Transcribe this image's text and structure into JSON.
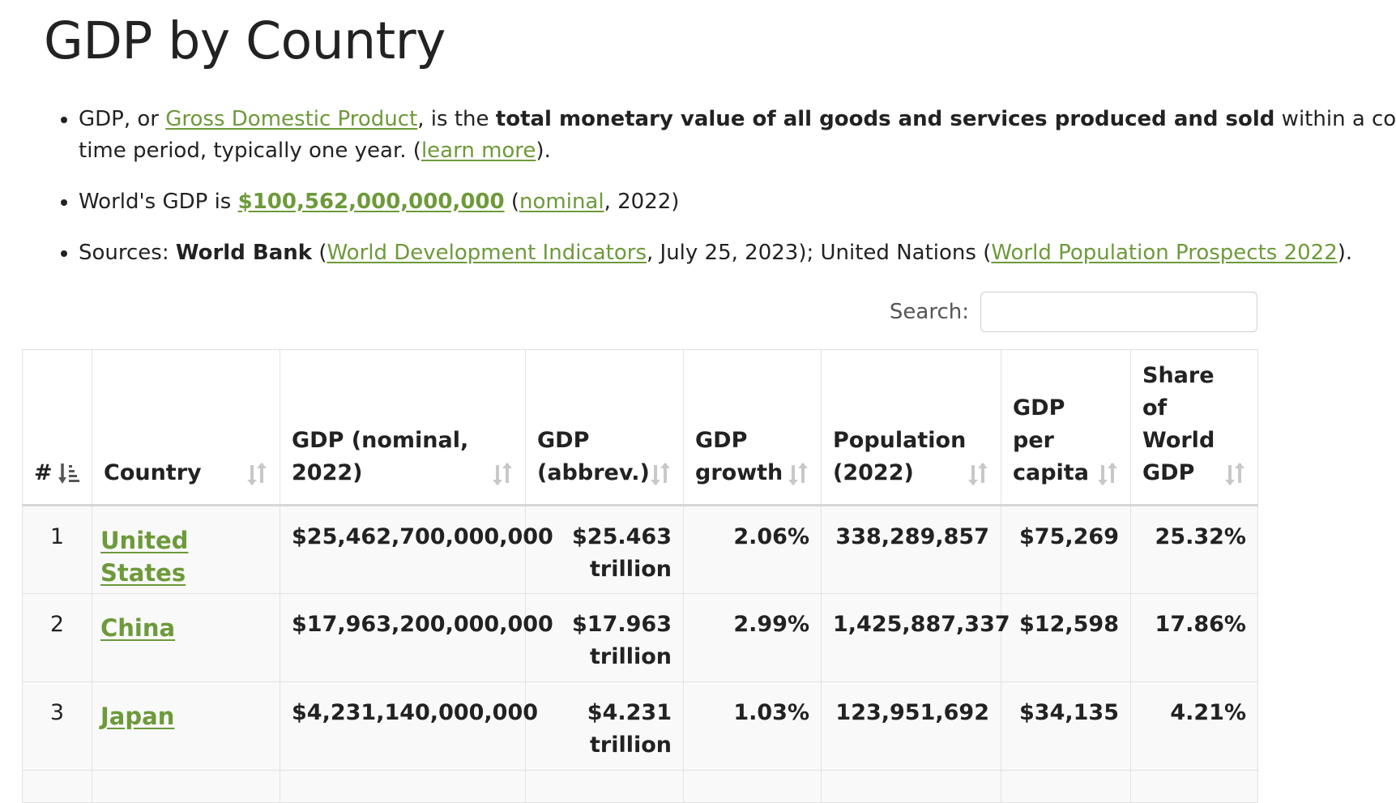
{
  "page": {
    "title": "GDP by Country"
  },
  "intro": {
    "b1_pre": "GDP, or ",
    "b1_link": "Gross Domestic Product",
    "b1_mid": ", is the ",
    "b1_bold": "total monetary value of all goods and services produced and sold",
    "b1_post": " within a co",
    "b1_line2_pre": "time period, typically one year. (",
    "b1_line2_link": "learn more",
    "b1_line2_post": ").",
    "b2_pre": "World's GDP is ",
    "b2_value": "$100,562,000,000,000",
    "b2_paren_open": " (",
    "b2_link": "nominal",
    "b2_post": ", 2022)",
    "b3_pre": "Sources: ",
    "b3_bold": "World Bank",
    "b3_paren": " (",
    "b3_link1": "World Development Indicators",
    "b3_mid": ", July 25, 2023); United Nations (",
    "b3_link2": "World Population Prospects 2022",
    "b3_post": ")."
  },
  "search": {
    "label": "Search:",
    "value": "",
    "placeholder": ""
  },
  "table": {
    "headers": [
      {
        "label": "#",
        "icon": "sort-desc-active-icon"
      },
      {
        "label": "Country",
        "icon": "sort-both-icon"
      },
      {
        "label": "GDP (nominal, 2022)",
        "icon": "sort-both-icon"
      },
      {
        "label": "GDP (abbrev.)",
        "icon": "sort-both-icon"
      },
      {
        "label": "GDP growth",
        "icon": "sort-both-icon"
      },
      {
        "label": "Population (2022)",
        "icon": "sort-both-icon"
      },
      {
        "label": "GDP per capita",
        "icon": "sort-both-icon"
      },
      {
        "label": "Share of World GDP",
        "icon": "sort-both-icon"
      }
    ],
    "rows": [
      {
        "rank": "1",
        "country": "United States",
        "gdp": "$25,462,700,000,000",
        "abbrev_value": "$25.463",
        "abbrev_unit": "trillion",
        "growth": "2.06%",
        "population": "338,289,857",
        "per_capita": "$75,269",
        "share": "25.32%"
      },
      {
        "rank": "2",
        "country": "China",
        "gdp": "$17,963,200,000,000",
        "abbrev_value": "$17.963",
        "abbrev_unit": "trillion",
        "growth": "2.99%",
        "population": "1,425,887,337",
        "per_capita": "$12,598",
        "share": "17.86%"
      },
      {
        "rank": "3",
        "country": "Japan",
        "gdp": "$4,231,140,000,000",
        "abbrev_value": "$4.231",
        "abbrev_unit": "trillion",
        "growth": "1.03%",
        "population": "123,951,692",
        "per_capita": "$34,135",
        "share": "4.21%"
      }
    ]
  },
  "colors": {
    "link": "#6d9a3a",
    "row_bg": "#f9f9f9",
    "border": "#e2e2e2",
    "sort_icon_inactive": "#c8c8c8",
    "sort_icon_active": "#555555"
  }
}
